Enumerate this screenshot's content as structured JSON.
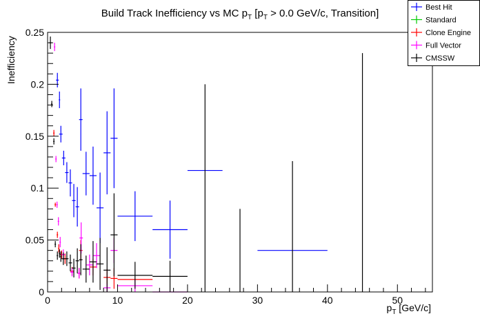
{
  "chart_data": {
    "type": "scatter",
    "title": "Build Track Inefficiency vs MC p",
    "title_sub": "T",
    "title_rest": " [p",
    "title_sub2": "T",
    "title_end": " > 0.0 GeV/c, Transition]",
    "xlabel": "p",
    "xlabel_sub": "T",
    "xlabel_unit": " [GeV/c]",
    "ylabel": "Inefficiency",
    "xlim": [
      0,
      55
    ],
    "ylim": [
      0,
      0.25
    ],
    "xticks": [
      "0",
      "10",
      "20",
      "30",
      "40",
      "50"
    ],
    "xtick_values": [
      0,
      10,
      20,
      30,
      40,
      50
    ],
    "yticks": [
      "0",
      "0.05",
      "0.1",
      "0.15",
      "0.2",
      "0.25"
    ],
    "ytick_values": [
      0,
      0.05,
      0.1,
      0.15,
      0.2,
      0.25
    ],
    "legend_placement": "top-right",
    "series": [
      {
        "name": "Best Hit",
        "color": "#0000ff",
        "points": [
          [
            1.4,
            0.204,
            0.2,
            0.007
          ],
          [
            1.7,
            0.185,
            0.1,
            0.008
          ],
          [
            1.9,
            0.152,
            0.25,
            0.008
          ],
          [
            2.3,
            0.129,
            0.25,
            0.007
          ],
          [
            2.75,
            0.115,
            0.25,
            0.01
          ],
          [
            3.25,
            0.105,
            0.25,
            0.013
          ],
          [
            3.75,
            0.088,
            0.25,
            0.016
          ],
          [
            4.25,
            0.082,
            0.25,
            0.019
          ],
          [
            4.75,
            0.166,
            0.25,
            0.03
          ],
          [
            5.5,
            0.114,
            0.5,
            0.021
          ],
          [
            6.5,
            0.112,
            0.5,
            0.028
          ],
          [
            7.5,
            0.081,
            0.5,
            0.034
          ],
          [
            8.5,
            0.134,
            0.5,
            0.04
          ],
          [
            9.5,
            0.148,
            0.5,
            0.048
          ],
          [
            12.5,
            0.073,
            2.5,
            0.024
          ],
          [
            17.5,
            0.06,
            2.5,
            0.028
          ],
          [
            22.5,
            0.117,
            2.5,
            0
          ],
          [
            35,
            0.04,
            5,
            0
          ]
        ]
      },
      {
        "name": "Standard",
        "color": "#00cc00",
        "points": []
      },
      {
        "name": "Clone Engine",
        "color": "#ff0000",
        "points": [
          [
            0.9,
            0.153,
            0.1,
            0.003
          ],
          [
            1.1,
            0.084,
            0.1,
            0.002
          ],
          [
            1.4,
            0.055,
            0.1,
            0.003
          ],
          [
            1.6,
            0.042,
            0.1,
            0.004
          ],
          [
            2.0,
            0.036,
            0.25,
            0.004
          ],
          [
            2.5,
            0.032,
            0.25,
            0.005
          ],
          [
            3.5,
            0.02,
            0.25,
            0.004
          ],
          [
            4.5,
            0.018,
            0.25,
            0.005
          ],
          [
            4.75,
            0.04,
            0.25,
            0.01
          ],
          [
            6.5,
            0.024,
            0.5,
            0.008
          ],
          [
            8.5,
            0.014,
            0.5,
            0.008
          ],
          [
            9.5,
            0.013,
            0.5,
            0.01
          ],
          [
            12.5,
            0.012,
            2.5,
            0
          ]
        ]
      },
      {
        "name": "Full Vector",
        "color": "#ff00ff",
        "points": [
          [
            1.0,
            0.236,
            0.1,
            0.004
          ],
          [
            1.2,
            0.128,
            0.1,
            0.003
          ],
          [
            1.35,
            0.084,
            0.1,
            0.003
          ],
          [
            1.55,
            0.068,
            0.1,
            0.004
          ],
          [
            1.8,
            0.048,
            0.1,
            0.005
          ],
          [
            2.25,
            0.036,
            0.25,
            0.005
          ],
          [
            3.5,
            0.019,
            0.25,
            0.004
          ],
          [
            4.5,
            0.018,
            0.25,
            0.005
          ],
          [
            4.8,
            0.052,
            0.25,
            0.015
          ],
          [
            6.0,
            0.026,
            0.5,
            0.01
          ],
          [
            7.0,
            0.035,
            0.5,
            0.012
          ],
          [
            8.5,
            0.004,
            0.5,
            0.004
          ],
          [
            9.5,
            0.04,
            0.5,
            0.012
          ],
          [
            12.5,
            0.006,
            2.5,
            0.006
          ],
          [
            17.5,
            0.0,
            2.5,
            0
          ]
        ]
      },
      {
        "name": "CMSSW",
        "color": "#000000",
        "points": [
          [
            0.4,
            0.24,
            0.2,
            0.006
          ],
          [
            0.6,
            0.181,
            0.1,
            0.003
          ],
          [
            0.9,
            0.145,
            0.1,
            0.003
          ],
          [
            1.1,
            0.046,
            0.1,
            0.003
          ],
          [
            1.4,
            0.035,
            0.1,
            0.004
          ],
          [
            1.7,
            0.037,
            0.1,
            0.004
          ],
          [
            1.9,
            0.034,
            0.1,
            0.005
          ],
          [
            2.25,
            0.032,
            0.25,
            0.006
          ],
          [
            2.75,
            0.032,
            0.25,
            0.007
          ],
          [
            3.25,
            0.028,
            0.25,
            0.008
          ],
          [
            3.75,
            0.023,
            0.25,
            0.009
          ],
          [
            4.25,
            0.03,
            0.25,
            0.012
          ],
          [
            4.75,
            0.031,
            0.25,
            0.015
          ],
          [
            5.5,
            0.022,
            0.5,
            0.013
          ],
          [
            6.5,
            0.029,
            0.5,
            0.02
          ],
          [
            7.5,
            0.027,
            0.5,
            0.025
          ],
          [
            8.5,
            0.021,
            0.5,
            0.022
          ],
          [
            9.5,
            0.055,
            0.5,
            0.04
          ],
          [
            12.5,
            0.016,
            2.5,
            0.013
          ],
          [
            17.5,
            0.015,
            2.5,
            0.015
          ],
          [
            22.5,
            0.1,
            0.0,
            0.1
          ],
          [
            27.5,
            0.04,
            0.0,
            0.04
          ],
          [
            35,
            0.063,
            0.0,
            0.063
          ],
          [
            45,
            0.115,
            0.0,
            0.115
          ]
        ]
      }
    ]
  }
}
